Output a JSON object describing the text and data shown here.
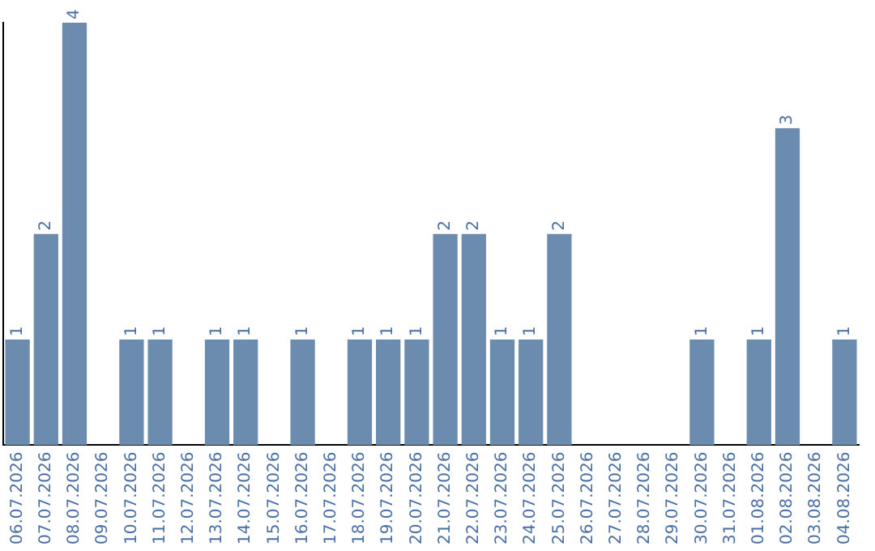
{
  "chart_data": {
    "type": "bar",
    "color": "#6b8cae",
    "categories": [
      "06.07.2026",
      "07.07.2026",
      "08.07.2026",
      "09.07.2026",
      "10.07.2026",
      "11.07.2026",
      "12.07.2026",
      "13.07.2026",
      "14.07.2026",
      "15.07.2026",
      "16.07.2026",
      "17.07.2026",
      "18.07.2026",
      "19.07.2026",
      "20.07.2026",
      "21.07.2026",
      "22.07.2026",
      "23.07.2026",
      "24.07.2026",
      "25.07.2026",
      "26.07.2026",
      "27.07.2026",
      "28.07.2026",
      "29.07.2026",
      "30.07.2026",
      "31.07.2026",
      "01.08.2026",
      "02.08.2026",
      "03.08.2026",
      "04.08.2026"
    ],
    "values": [
      1,
      2,
      4,
      0,
      1,
      1,
      0,
      1,
      1,
      0,
      1,
      0,
      1,
      1,
      1,
      2,
      2,
      1,
      1,
      2,
      0,
      0,
      0,
      0,
      1,
      0,
      1,
      3,
      0,
      1
    ],
    "value_labels": [
      "1",
      "2",
      "4",
      null,
      "1",
      "1",
      null,
      "1",
      "1",
      null,
      "1",
      null,
      "1",
      "1",
      "1",
      "2",
      "2",
      "1",
      "1",
      "2",
      null,
      null,
      null,
      null,
      "1",
      null,
      "1",
      "3",
      null,
      "1"
    ],
    "grid": false,
    "legend": false
  }
}
